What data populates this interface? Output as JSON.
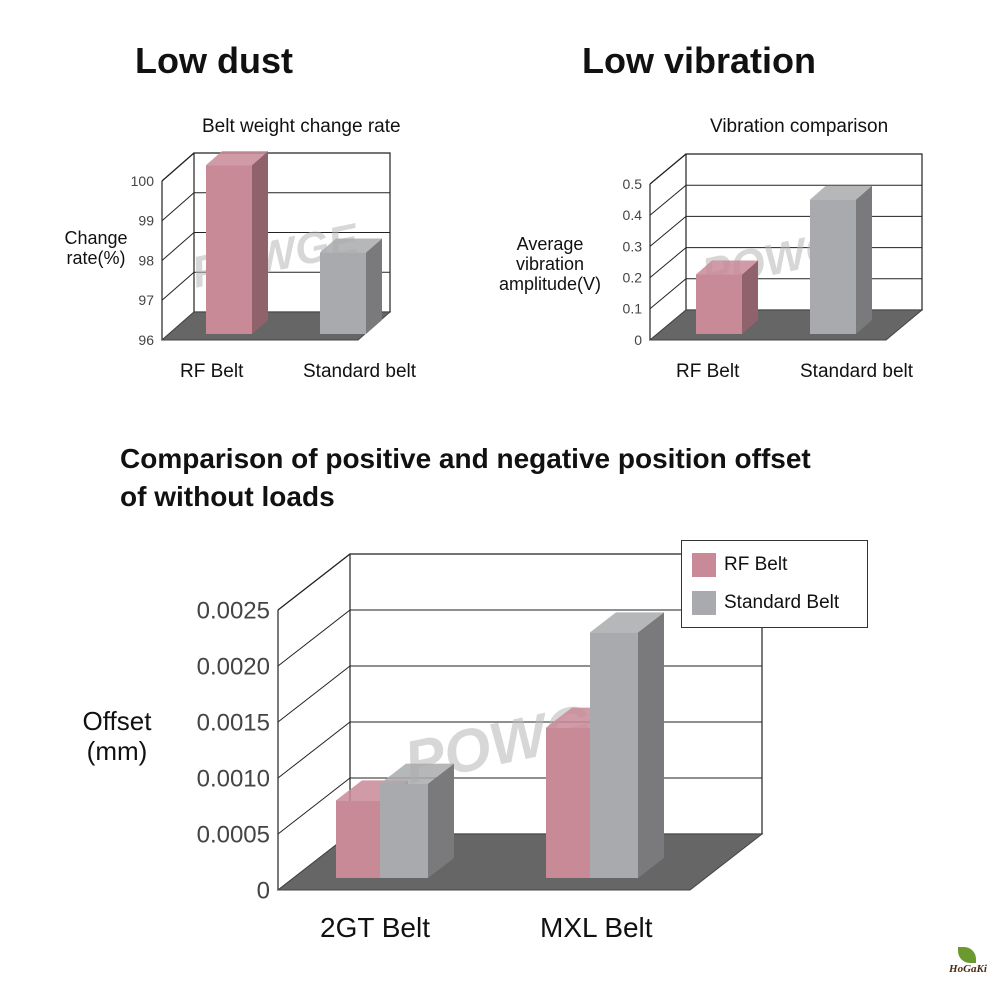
{
  "headings": {
    "left": "Low dust",
    "right": "Low vibration"
  },
  "colors": {
    "rf": "#c88a96",
    "standard": "#a9aaad",
    "floor": "#666666",
    "grid": "#222222"
  },
  "chart_data": [
    {
      "type": "bar",
      "title": "Belt weight change rate",
      "ylabel_lines": [
        "Change",
        "rate(%)"
      ],
      "categories": [
        "RF Belt",
        "Standard belt"
      ],
      "values": [
        100.4,
        98.2
      ],
      "yticks": [
        "96",
        "97",
        "98",
        "99",
        "100"
      ],
      "ylim": [
        96,
        100
      ],
      "grid": true
    },
    {
      "type": "bar",
      "title": "Vibration comparison",
      "ylabel_lines": [
        "Average",
        "vibration",
        "amplitude(V)"
      ],
      "categories": [
        "RF Belt",
        "Standard belt"
      ],
      "values": [
        0.21,
        0.45
      ],
      "yticks": [
        "0",
        "0.1",
        "0.2",
        "0.3",
        "0.4",
        "0.5"
      ],
      "ylim": [
        0,
        0.5
      ],
      "grid": true
    },
    {
      "type": "bar",
      "title_lines": [
        "Comparison of positive and negative position offset",
        "of without loads"
      ],
      "ylabel_lines": [
        "Offset",
        "(mm)"
      ],
      "categories": [
        "2GT Belt",
        "MXL Belt"
      ],
      "series": [
        {
          "name": "RF Belt",
          "values": [
            0.0008,
            0.00145
          ]
        },
        {
          "name": "Standard Belt",
          "values": [
            0.00095,
            0.0023
          ]
        }
      ],
      "yticks": [
        "0",
        "0.0005",
        "0.0010",
        "0.0015",
        "0.0020",
        "0.0025"
      ],
      "ylim": [
        0,
        0.0025
      ],
      "legend": "top-right",
      "grid": true
    }
  ],
  "watermark": "POWGE",
  "footer_logo": "HoGaKi"
}
